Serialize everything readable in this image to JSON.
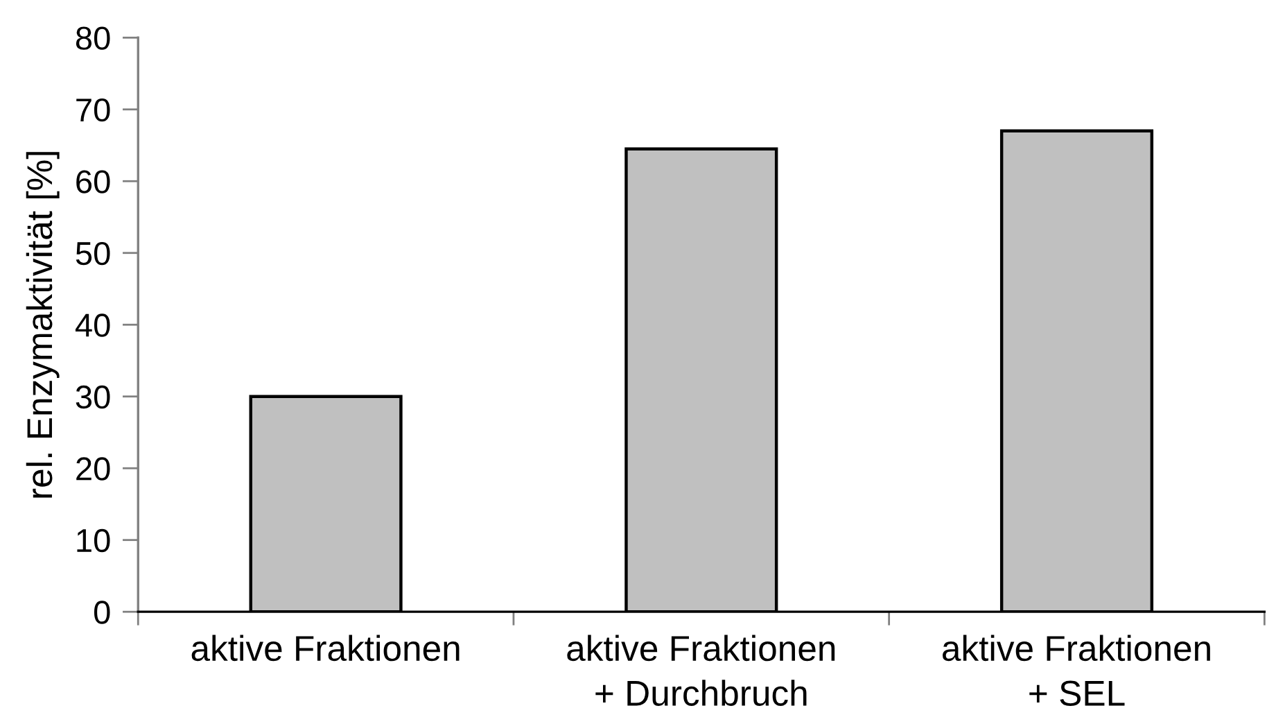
{
  "chart_data": {
    "type": "bar",
    "ylabel": "rel. Enzymaktivität [%]",
    "categories": [
      "aktive Fraktionen",
      "aktive Fraktionen\n+ Durchbruch",
      "aktive Fraktionen\n+ SEL"
    ],
    "values": [
      30,
      64.5,
      67
    ],
    "color": "#c0c0c0",
    "ylim": [
      0,
      80
    ],
    "yticks": [
      0,
      10,
      20,
      30,
      40,
      50,
      60,
      70,
      80
    ]
  }
}
